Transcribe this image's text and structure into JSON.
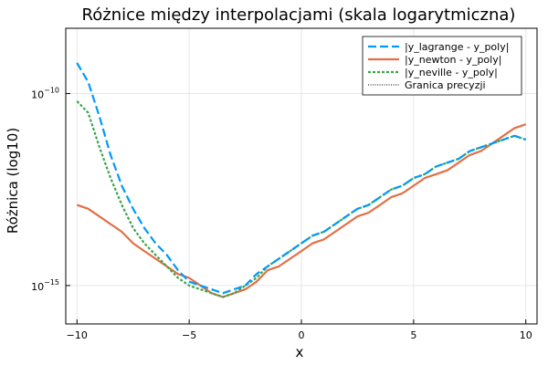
{
  "chart_data": {
    "type": "line",
    "title": "Różnice między interpolacjami (skala logarytmiczna)",
    "xlabel": "x",
    "ylabel": "Różnica (log10)",
    "xlim": [
      -10.5,
      10.5
    ],
    "ylim_log10": [
      -16.0,
      -8.3
    ],
    "yscale": "log10",
    "grid": true,
    "legend_position": "top-right",
    "x_ticks": [
      {
        "value": -10,
        "label": "−10"
      },
      {
        "value": -5,
        "label": "−5"
      },
      {
        "value": 0,
        "label": "0"
      },
      {
        "value": 5,
        "label": "5"
      },
      {
        "value": 10,
        "label": "10"
      }
    ],
    "y_ticks": [
      {
        "exp": -10,
        "base": "10",
        "sup": "−10"
      },
      {
        "exp": -15,
        "base": "10",
        "sup": "−15"
      }
    ],
    "series": [
      {
        "name": "|y_lagrange - y_poly|",
        "color": "#009af9",
        "dash": "dashed",
        "x": [
          -10.0,
          -9.5,
          -9.0,
          -8.5,
          -8.0,
          -7.5,
          -7.0,
          -6.5,
          -6.0,
          -5.5,
          -5.0,
          -4.5,
          -4.0,
          -3.5,
          -3.0,
          -2.5,
          -2.0,
          -1.5,
          -1.0,
          -0.5,
          0.0,
          0.5,
          1.0,
          1.5,
          2.0,
          2.5,
          3.0,
          3.5,
          4.0,
          4.5,
          5.0,
          5.5,
          6.0,
          6.5,
          7.0,
          7.5,
          8.0,
          8.5,
          9.0,
          9.5,
          10.0
        ],
        "log10_y": [
          -9.2,
          -9.7,
          -10.6,
          -11.6,
          -12.4,
          -13.0,
          -13.5,
          -13.9,
          -14.2,
          -14.6,
          -14.9,
          -15.0,
          -15.1,
          -15.2,
          -15.1,
          -15.0,
          -14.7,
          -14.5,
          -14.3,
          -14.1,
          -13.9,
          -13.7,
          -13.6,
          -13.4,
          -13.2,
          -13.0,
          -12.9,
          -12.7,
          -12.5,
          -12.4,
          -12.2,
          -12.1,
          -11.9,
          -11.8,
          -11.7,
          -11.5,
          -11.4,
          -11.3,
          -11.2,
          -11.1,
          -11.2
        ]
      },
      {
        "name": "|y_newton - y_poly|",
        "color": "#e26f46",
        "dash": "solid",
        "x": [
          -10.0,
          -9.5,
          -9.0,
          -8.5,
          -8.0,
          -7.5,
          -7.0,
          -6.5,
          -6.0,
          -5.5,
          -5.0,
          -4.5,
          -4.0,
          -3.5,
          -3.0,
          -2.5,
          -2.0,
          -1.5,
          -1.0,
          -0.5,
          0.0,
          0.5,
          1.0,
          1.5,
          2.0,
          2.5,
          3.0,
          3.5,
          4.0,
          4.5,
          5.0,
          5.5,
          6.0,
          6.5,
          7.0,
          7.5,
          8.0,
          8.5,
          9.0,
          9.5,
          10.0
        ],
        "log10_y": [
          -12.9,
          -13.0,
          -13.2,
          -13.4,
          -13.6,
          -13.9,
          -14.1,
          -14.3,
          -14.5,
          -14.7,
          -14.8,
          -15.0,
          -15.2,
          -15.3,
          -15.2,
          -15.1,
          -14.9,
          -14.6,
          -14.5,
          -14.3,
          -14.1,
          -13.9,
          -13.8,
          -13.6,
          -13.4,
          -13.2,
          -13.1,
          -12.9,
          -12.7,
          -12.6,
          -12.4,
          -12.2,
          -12.1,
          -12.0,
          -11.8,
          -11.6,
          -11.5,
          -11.3,
          -11.1,
          -10.9,
          -10.8
        ]
      },
      {
        "name": "|y_neville - y_poly|",
        "color": "#3da44d",
        "dash": "dotted",
        "x": [
          -10.0,
          -9.5,
          -9.0,
          -8.5,
          -8.0,
          -7.5,
          -7.0,
          -6.5,
          -6.0,
          -5.5,
          -5.0,
          -4.5,
          -4.0,
          -3.5,
          -3.0,
          -2.5,
          -2.0,
          -1.5,
          -1.0,
          -0.5,
          0.0,
          0.5,
          1.0,
          1.5,
          2.0,
          2.5,
          3.0,
          3.5,
          4.0,
          4.5,
          5.0,
          5.5,
          6.0,
          6.5,
          7.0,
          7.5,
          8.0,
          8.5,
          9.0,
          9.5,
          10.0
        ],
        "log10_y": [
          -10.2,
          -10.5,
          -11.4,
          -12.2,
          -12.9,
          -13.5,
          -13.9,
          -14.2,
          -14.5,
          -14.8,
          -15.0,
          -15.1,
          -15.2,
          -15.3,
          -15.2,
          -15.0,
          -14.8,
          -14.5,
          -14.3,
          -14.1,
          -13.9,
          -13.7,
          -13.6,
          -13.4,
          -13.2,
          -13.0,
          -12.9,
          -12.7,
          -12.5,
          -12.4,
          -12.2,
          -12.1,
          -11.9,
          -11.8,
          -11.7,
          -11.5,
          -11.4,
          -11.3,
          -11.2,
          -11.1,
          -11.2
        ]
      },
      {
        "name": "Granica precyzji",
        "color": "#000000",
        "dash": "dotted-fine",
        "x": [
          -10.5,
          10.5
        ],
        "log10_y": [
          -16.2,
          -16.2
        ]
      }
    ]
  }
}
